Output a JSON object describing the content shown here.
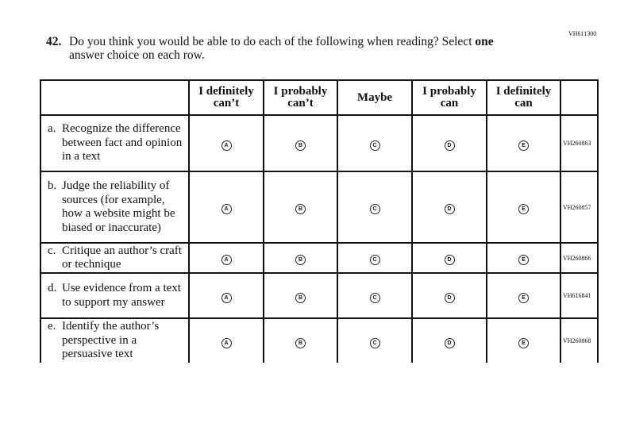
{
  "question": {
    "id_code": "VH611300",
    "number": "42.",
    "text_before": "Do you think you would be able to do each of the following when reading? Select ",
    "text_bold": "one",
    "text_line2": "answer choice on each row."
  },
  "columns": [
    {
      "line1": "I definitely",
      "line2": "can’t"
    },
    {
      "line1": "I probably",
      "line2": "can’t"
    },
    {
      "line1": "Maybe",
      "line2": ""
    },
    {
      "line1": "I probably",
      "line2": "can"
    },
    {
      "line1": "I definitely",
      "line2": "can"
    }
  ],
  "options": [
    "A",
    "B",
    "C",
    "D",
    "E"
  ],
  "rows": [
    {
      "letter": "a.",
      "text": "Recognize the difference between fact and opinion in a text",
      "code": "VH260863"
    },
    {
      "letter": "b.",
      "text": "Judge the reliability of sources (for example, how a website might be biased or inaccurate)",
      "code": "VH260857"
    },
    {
      "letter": "c.",
      "text": "Critique an author’s craft or technique",
      "code": "VH260866"
    },
    {
      "letter": "d.",
      "text": "Use evidence from a text to support my answer",
      "code": "VH616841"
    },
    {
      "letter": "e.",
      "text": "Identify the author’s perspective in a persuasive text",
      "code": "VH260868"
    }
  ]
}
